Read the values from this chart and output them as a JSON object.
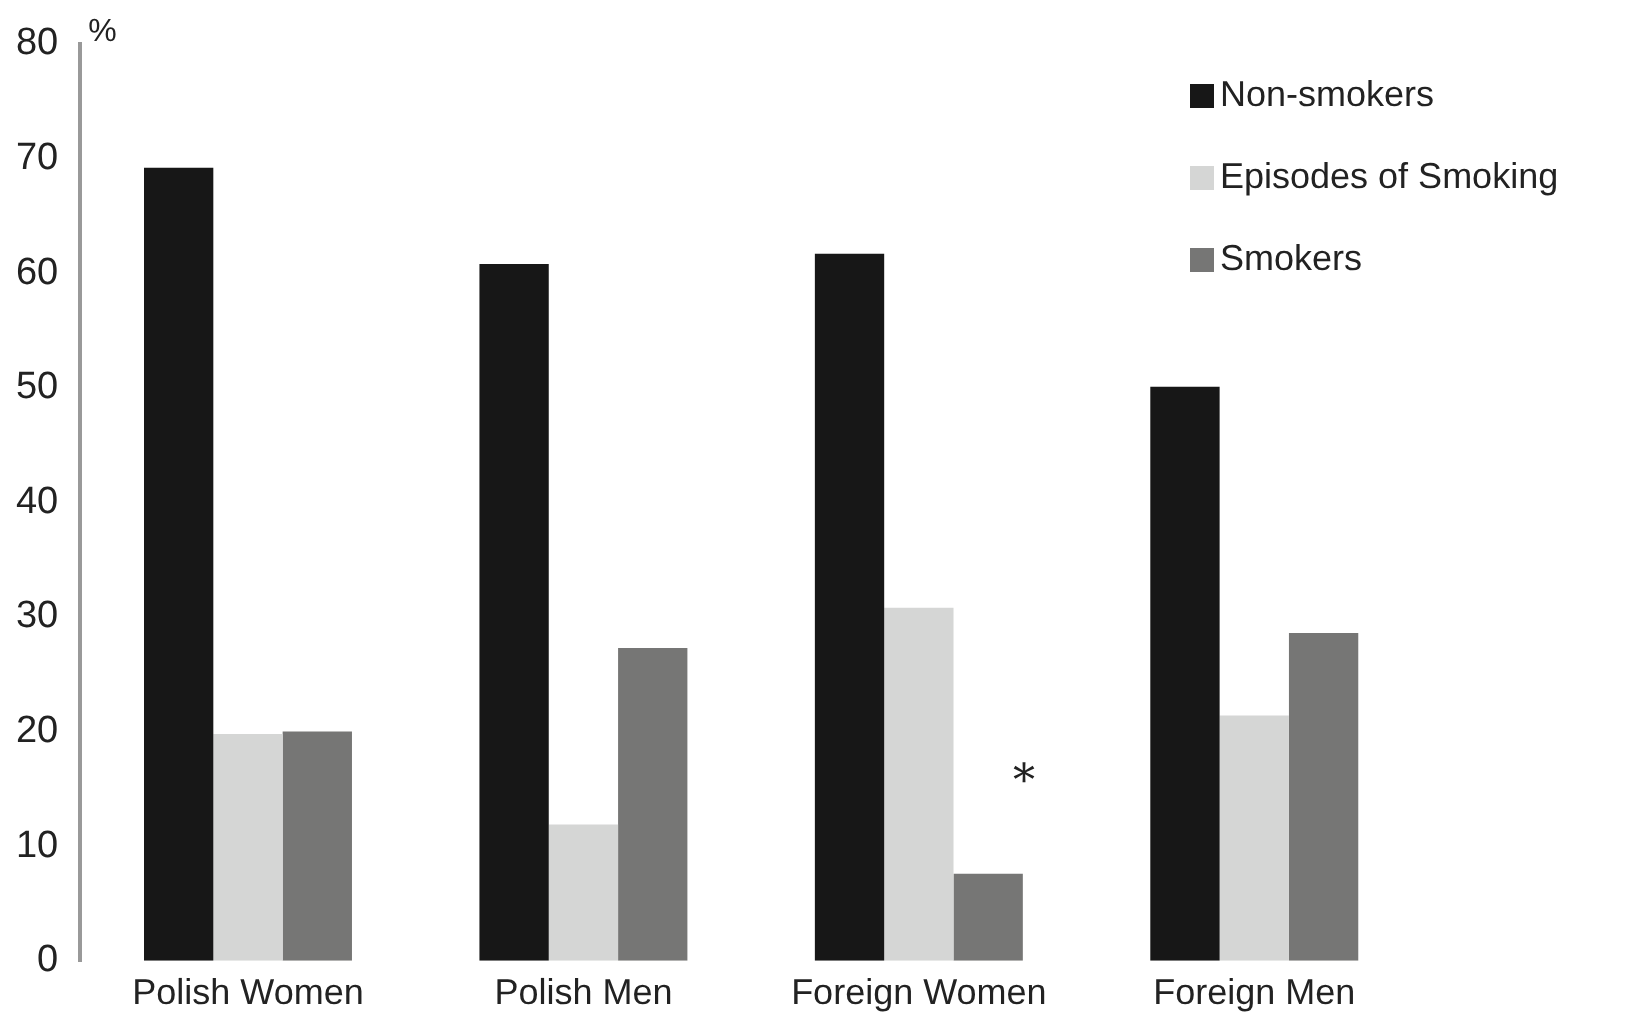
{
  "chart_data": {
    "type": "bar",
    "ylabel": "%",
    "categories": [
      "Polish Women",
      "Polish Men",
      "Foreign Women",
      "Foreign Men"
    ],
    "series": [
      {
        "name": "Non-smokers",
        "color": "#171717",
        "values": [
          69.2,
          60.8,
          61.7,
          50.1
        ]
      },
      {
        "name": "Episodes of Smoking",
        "color": "#d5d6d5",
        "values": [
          19.8,
          11.9,
          30.8,
          21.4
        ]
      },
      {
        "name": "Smokers",
        "color": "#767675",
        "values": [
          20.0,
          27.3,
          7.6,
          28.6
        ]
      }
    ],
    "ylim": [
      0,
      80
    ],
    "yticks": [
      0,
      10,
      20,
      30,
      40,
      50,
      60,
      70,
      80
    ],
    "grid": false,
    "legend": "top right",
    "annotations": [
      "*"
    ]
  }
}
